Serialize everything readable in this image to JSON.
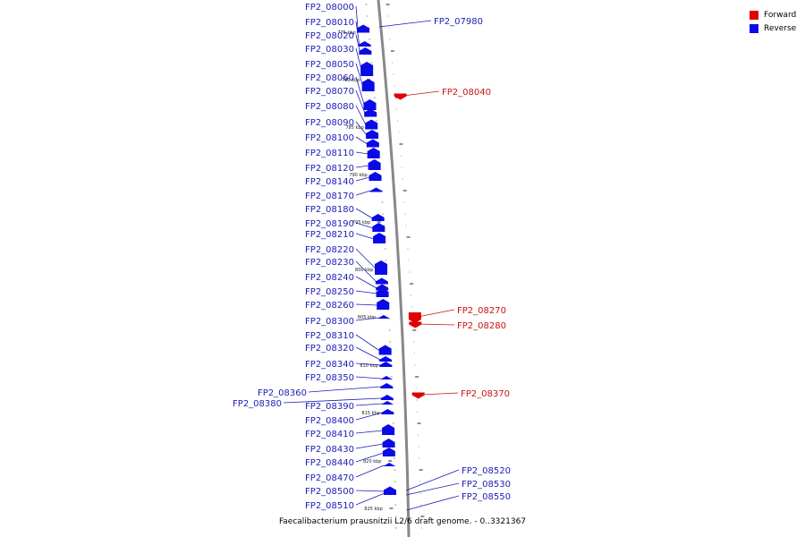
{
  "legend": {
    "forward_label": "Forward",
    "reverse_label": "Reverse",
    "forward_color": "#e00000",
    "reverse_color": "#0a0ae6"
  },
  "caption": "Faecalibacterium prausnitzii L2/6 draft genome. - 0..3321367",
  "kbp_marks": [
    "775 kbp",
    "780 kbp",
    "785 kbp",
    "790 kbp",
    "795 kbp",
    "800 kbp",
    "805 kbp",
    "810 kbp",
    "815 kbp",
    "820 kbp",
    "825 kbp"
  ],
  "genes_left": [
    "FP2_08000",
    "FP2_08010",
    "FP2_08020",
    "FP2_08030",
    "FP2_08050",
    "FP2_08060",
    "FP2_08070",
    "FP2_08080",
    "FP2_08090",
    "FP2_08100",
    "FP2_08110",
    "FP2_08120",
    "FP2_08140",
    "FP2_08170",
    "FP2_08180",
    "FP2_08190",
    "FP2_08210",
    "FP2_08220",
    "FP2_08230",
    "FP2_08240",
    "FP2_08250",
    "FP2_08260",
    "FP2_08300",
    "FP2_08310",
    "FP2_08320",
    "FP2_08340",
    "FP2_08350",
    "FP2_08360",
    "FP2_08380",
    "FP2_08390",
    "FP2_08400",
    "FP2_08410",
    "FP2_08430",
    "FP2_08440",
    "FP2_08470",
    "FP2_08500",
    "FP2_08510"
  ],
  "genes_right": [
    {
      "name": "FP2_07980",
      "strand": "reverse"
    },
    {
      "name": "FP2_08040",
      "strand": "forward"
    },
    {
      "name": "FP2_08270",
      "strand": "forward"
    },
    {
      "name": "FP2_08280",
      "strand": "forward"
    },
    {
      "name": "FP2_08370",
      "strand": "forward"
    },
    {
      "name": "FP2_08520",
      "strand": "reverse"
    },
    {
      "name": "FP2_08530",
      "strand": "reverse"
    },
    {
      "name": "FP2_08550",
      "strand": "reverse"
    }
  ]
}
